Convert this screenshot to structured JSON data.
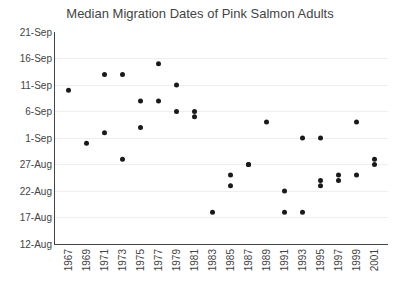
{
  "chart_data": {
    "type": "scatter",
    "title": "Median Migration Dates of Pink Salmon Adults",
    "x": [
      1967,
      1969,
      1971,
      1971,
      1973,
      1973,
      1975,
      1975,
      1977,
      1977,
      1979,
      1979,
      1981,
      1981,
      1983,
      1985,
      1985,
      1987,
      1987,
      1989,
      1991,
      1991,
      1993,
      1993,
      1995,
      1995,
      1995,
      1997,
      1997,
      1999,
      1999,
      2001,
      2001
    ],
    "values": [
      29,
      19,
      21,
      32,
      16,
      32,
      22,
      27,
      27,
      34,
      30,
      25,
      25,
      24,
      6,
      13,
      11,
      15,
      15,
      23,
      10,
      6,
      20,
      6,
      20,
      11,
      12,
      12,
      13,
      23,
      13,
      16,
      15
    ],
    "color": "#1a1a1a",
    "xlim": [
      1965.5,
      2002.5
    ],
    "xticks": [
      1967,
      1969,
      1971,
      1973,
      1975,
      1977,
      1979,
      1981,
      1983,
      1985,
      1987,
      1989,
      1991,
      1993,
      1995,
      1997,
      1999,
      2001
    ],
    "ylim": [
      0,
      40
    ],
    "yticks": [
      {
        "value": 0,
        "label": "12-Aug"
      },
      {
        "value": 5,
        "label": "17-Aug"
      },
      {
        "value": 10,
        "label": "22-Aug"
      },
      {
        "value": 15,
        "label": "27-Aug"
      },
      {
        "value": 20,
        "label": "1-Sep"
      },
      {
        "value": 25,
        "label": "6-Sep"
      },
      {
        "value": 30,
        "label": "11-Sep"
      },
      {
        "value": 35,
        "label": "16-Sep"
      },
      {
        "value": 40,
        "label": "21-Sep"
      }
    ],
    "grid": "y"
  }
}
